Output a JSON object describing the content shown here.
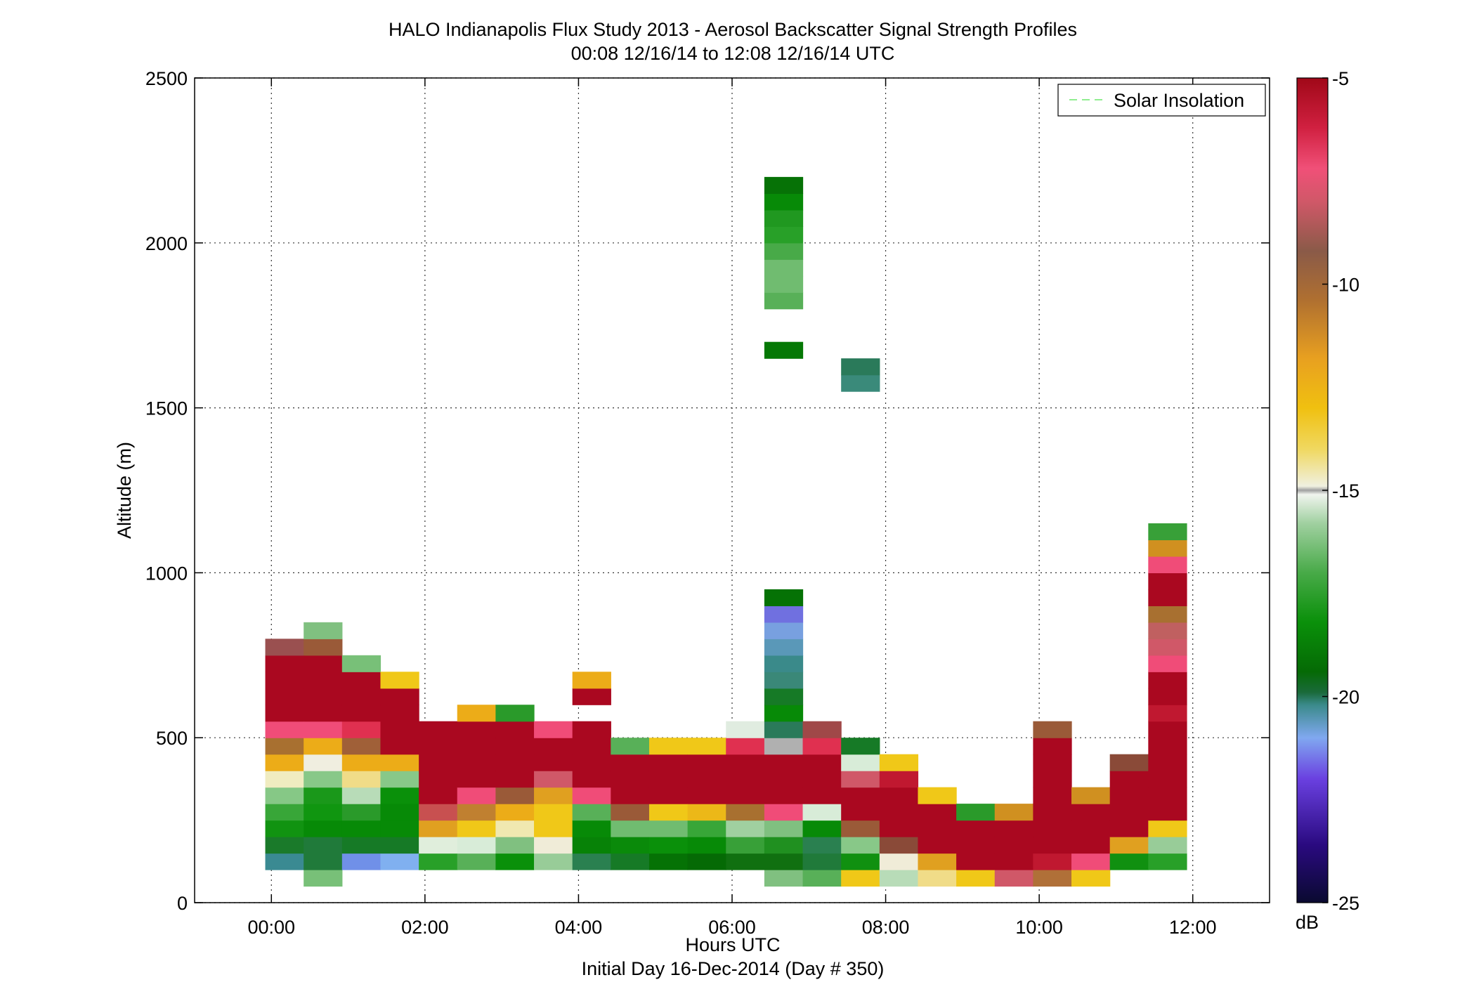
{
  "chart_data": {
    "type": "heatmap",
    "title": "HALO Indianapolis Flux Study 2013 - Aerosol Backscatter Signal Strength Profiles",
    "subtitle": "00:08 12/16/14 to 12:08 12/16/14  UTC",
    "xlabel": "Hours UTC",
    "xlabel2": "Initial Day 16-Dec-2014 (Day # 350)",
    "ylabel": "Altitude (m)",
    "xlim": [
      -1,
      13
    ],
    "ylim": [
      0,
      2500
    ],
    "x_ticks": [
      0,
      2,
      4,
      6,
      8,
      10,
      12
    ],
    "x_tick_labels": [
      "00:00",
      "02:00",
      "04:00",
      "06:00",
      "08:00",
      "10:00",
      "12:00"
    ],
    "y_ticks": [
      0,
      500,
      1000,
      1500,
      2000,
      2500
    ],
    "y_tick_labels": [
      "0",
      "500",
      "1000",
      "1500",
      "2000",
      "2500"
    ],
    "grid": true,
    "legend": {
      "position": "top-right",
      "entries": [
        {
          "label": "Solar Insolation",
          "color": "#90ee90",
          "style": "dashed"
        }
      ]
    },
    "colorbar": {
      "label": "dB",
      "range": [
        -25,
        -5
      ],
      "ticks": [
        -5,
        -10,
        -15,
        -20,
        -25
      ],
      "tick_labels": [
        "-5",
        "-10",
        "-15",
        "-20",
        "-25"
      ]
    },
    "columns": [
      {
        "x": 0.17,
        "cells": [
          [
            100,
            "#3a8a92"
          ],
          [
            150,
            "#1a7a2a"
          ],
          [
            200,
            "#119311"
          ],
          [
            250,
            "#38a638"
          ],
          [
            300,
            "#86c886"
          ],
          [
            350,
            "#f0ecc0"
          ],
          [
            400,
            "#ecac18"
          ],
          [
            450,
            "#a87030"
          ],
          [
            500,
            "#f04c78"
          ],
          [
            550,
            "#aa0820"
          ],
          [
            600,
            "#aa0820"
          ],
          [
            650,
            "#aa0820"
          ],
          [
            700,
            "#aa0820"
          ],
          [
            750,
            "#9a5050"
          ]
        ]
      },
      {
        "x": 0.67,
        "cells": [
          [
            50,
            "#78c078"
          ],
          [
            100,
            "#207a3a"
          ],
          [
            150,
            "#207a3a"
          ],
          [
            200,
            "#078a07"
          ],
          [
            250,
            "#109610"
          ],
          [
            300,
            "#1a981a"
          ],
          [
            350,
            "#88c888"
          ],
          [
            400,
            "#f0eee0"
          ],
          [
            450,
            "#ecac18"
          ],
          [
            500,
            "#f04c78"
          ],
          [
            550,
            "#aa0820"
          ],
          [
            600,
            "#aa0820"
          ],
          [
            650,
            "#aa0820"
          ],
          [
            700,
            "#aa0820"
          ],
          [
            750,
            "#9a5a38"
          ],
          [
            800,
            "#80c080"
          ]
        ]
      },
      {
        "x": 1.17,
        "cells": [
          [
            100,
            "#7090e8"
          ],
          [
            150,
            "#167a26"
          ],
          [
            200,
            "#078a07"
          ],
          [
            250,
            "#2a9a2a"
          ],
          [
            300,
            "#b8dcb8"
          ],
          [
            350,
            "#f0dc88"
          ],
          [
            400,
            "#ecac18"
          ],
          [
            450,
            "#a06038"
          ],
          [
            500,
            "#e03050"
          ],
          [
            550,
            "#aa0820"
          ],
          [
            600,
            "#aa0820"
          ],
          [
            650,
            "#aa0820"
          ],
          [
            700,
            "#78c078"
          ]
        ]
      },
      {
        "x": 1.67,
        "cells": [
          [
            100,
            "#80b0f0"
          ],
          [
            150,
            "#167a26"
          ],
          [
            200,
            "#078a07"
          ],
          [
            250,
            "#078a07"
          ],
          [
            300,
            "#0a900a"
          ],
          [
            350,
            "#88c888"
          ],
          [
            400,
            "#ecac18"
          ],
          [
            450,
            "#aa0820"
          ],
          [
            500,
            "#aa0820"
          ],
          [
            550,
            "#aa0820"
          ],
          [
            600,
            "#aa0820"
          ],
          [
            650,
            "#f0c818"
          ]
        ]
      },
      {
        "x": 2.17,
        "cells": [
          [
            100,
            "#28a028"
          ],
          [
            150,
            "#e0eedc"
          ],
          [
            200,
            "#e0a020"
          ],
          [
            250,
            "#c85050"
          ],
          [
            300,
            "#aa0820"
          ],
          [
            350,
            "#aa0820"
          ],
          [
            400,
            "#aa0820"
          ],
          [
            450,
            "#aa0820"
          ],
          [
            500,
            "#aa0820"
          ]
        ]
      },
      {
        "x": 2.67,
        "cells": [
          [
            100,
            "#58b058"
          ],
          [
            150,
            "#d8ecd8"
          ],
          [
            200,
            "#f0c818"
          ],
          [
            250,
            "#c08030"
          ],
          [
            300,
            "#f04c78"
          ],
          [
            350,
            "#aa0820"
          ],
          [
            400,
            "#aa0820"
          ],
          [
            450,
            "#aa0820"
          ],
          [
            500,
            "#aa0820"
          ],
          [
            550,
            "#ecac18"
          ]
        ]
      },
      {
        "x": 3.17,
        "cells": [
          [
            100,
            "#0a900a"
          ],
          [
            150,
            "#80c080"
          ],
          [
            200,
            "#f0e8b0"
          ],
          [
            250,
            "#ecac18"
          ],
          [
            300,
            "#9a5a38"
          ],
          [
            350,
            "#aa0820"
          ],
          [
            400,
            "#aa0820"
          ],
          [
            450,
            "#aa0820"
          ],
          [
            500,
            "#aa0820"
          ],
          [
            550,
            "#2a9a2a"
          ]
        ]
      },
      {
        "x": 3.67,
        "cells": [
          [
            100,
            "#98cc98"
          ],
          [
            150,
            "#f0ecd8"
          ],
          [
            200,
            "#f0c818"
          ],
          [
            250,
            "#f0c818"
          ],
          [
            300,
            "#e0a020"
          ],
          [
            350,
            "#d05868"
          ],
          [
            400,
            "#aa0820"
          ],
          [
            450,
            "#aa0820"
          ],
          [
            500,
            "#f04c78"
          ]
        ]
      },
      {
        "x": 4.17,
        "cells": [
          [
            100,
            "#2a8050"
          ],
          [
            150,
            "#078207"
          ],
          [
            200,
            "#078a07"
          ],
          [
            250,
            "#58b058"
          ],
          [
            300,
            "#f04c78"
          ],
          [
            350,
            "#aa0820"
          ],
          [
            400,
            "#aa0820"
          ],
          [
            450,
            "#aa0820"
          ],
          [
            500,
            "#aa0820"
          ],
          [
            600,
            "#aa0820"
          ],
          [
            650,
            "#ecac18"
          ]
        ]
      },
      {
        "x": 4.67,
        "cells": [
          [
            100,
            "#167a26"
          ],
          [
            150,
            "#0a8a0a"
          ],
          [
            200,
            "#70bc70"
          ],
          [
            250,
            "#9a5a38"
          ],
          [
            300,
            "#aa0820"
          ],
          [
            350,
            "#aa0820"
          ],
          [
            400,
            "#aa0820"
          ],
          [
            450,
            "#58b058"
          ]
        ]
      },
      {
        "x": 5.17,
        "cells": [
          [
            100,
            "#057205"
          ],
          [
            150,
            "#0a900a"
          ],
          [
            200,
            "#70bc70"
          ],
          [
            250,
            "#f0c818"
          ],
          [
            300,
            "#aa0820"
          ],
          [
            350,
            "#aa0820"
          ],
          [
            400,
            "#aa0820"
          ],
          [
            450,
            "#f0c818"
          ]
        ]
      },
      {
        "x": 5.67,
        "cells": [
          [
            100,
            "#056a05"
          ],
          [
            150,
            "#078a07"
          ],
          [
            200,
            "#38a638"
          ],
          [
            250,
            "#ecb818"
          ],
          [
            300,
            "#aa0820"
          ],
          [
            350,
            "#aa0820"
          ],
          [
            400,
            "#aa0820"
          ],
          [
            450,
            "#f0c818"
          ]
        ]
      },
      {
        "x": 6.17,
        "cells": [
          [
            100,
            "#107010"
          ],
          [
            150,
            "#38a038"
          ],
          [
            200,
            "#a0d0a0"
          ],
          [
            250,
            "#a87030"
          ],
          [
            300,
            "#aa0820"
          ],
          [
            350,
            "#aa0820"
          ],
          [
            400,
            "#aa0820"
          ],
          [
            450,
            "#e03050"
          ],
          [
            500,
            "#e0ece0"
          ]
        ]
      },
      {
        "x": 6.67,
        "cells": [
          [
            50,
            "#80c080"
          ],
          [
            100,
            "#107010"
          ],
          [
            150,
            "#209020"
          ],
          [
            200,
            "#80c080"
          ],
          [
            250,
            "#f04c78"
          ],
          [
            300,
            "#aa0820"
          ],
          [
            350,
            "#aa0820"
          ],
          [
            400,
            "#aa0820"
          ],
          [
            450,
            "#b0b0b0"
          ],
          [
            500,
            "#2a7a5a"
          ],
          [
            550,
            "#078a07"
          ],
          [
            600,
            "#167a26"
          ],
          [
            650,
            "#3a8878"
          ],
          [
            700,
            "#3a8a8a"
          ],
          [
            750,
            "#5a98b8"
          ],
          [
            800,
            "#78a0e0"
          ],
          [
            850,
            "#7070e0"
          ],
          [
            900,
            "#057205"
          ],
          [
            1650,
            "#057805"
          ],
          [
            1800,
            "#58b058"
          ],
          [
            1850,
            "#70bc70"
          ],
          [
            1900,
            "#70bc70"
          ],
          [
            1950,
            "#48aa48"
          ],
          [
            2000,
            "#28a028"
          ],
          [
            2050,
            "#209820"
          ],
          [
            2100,
            "#078a07"
          ],
          [
            2150,
            "#067206"
          ]
        ]
      },
      {
        "x": 7.17,
        "cells": [
          [
            50,
            "#58b058"
          ],
          [
            100,
            "#207a3a"
          ],
          [
            150,
            "#2a8050"
          ],
          [
            200,
            "#078a07"
          ],
          [
            250,
            "#d8ecd8"
          ],
          [
            300,
            "#aa0820"
          ],
          [
            350,
            "#aa0820"
          ],
          [
            400,
            "#aa0820"
          ],
          [
            450,
            "#e03050"
          ],
          [
            500,
            "#a04848"
          ]
        ]
      },
      {
        "x": 7.67,
        "cells": [
          [
            50,
            "#f0c818"
          ],
          [
            100,
            "#109010"
          ],
          [
            150,
            "#88c888"
          ],
          [
            200,
            "#9a5a38"
          ],
          [
            250,
            "#aa0820"
          ],
          [
            300,
            "#aa0820"
          ],
          [
            350,
            "#d05868"
          ],
          [
            400,
            "#d8ecd8"
          ],
          [
            450,
            "#167a26"
          ],
          [
            1550,
            "#3a8a7a"
          ],
          [
            1600,
            "#2a7a5a"
          ]
        ]
      },
      {
        "x": 8.17,
        "cells": [
          [
            50,
            "#b8dcb8"
          ],
          [
            100,
            "#f0ecd8"
          ],
          [
            150,
            "#8a4a38"
          ],
          [
            200,
            "#aa0820"
          ],
          [
            250,
            "#aa0820"
          ],
          [
            300,
            "#aa0820"
          ],
          [
            350,
            "#c01830"
          ],
          [
            400,
            "#f0c818"
          ]
        ]
      },
      {
        "x": 8.67,
        "cells": [
          [
            50,
            "#f0dc88"
          ],
          [
            100,
            "#e0a020"
          ],
          [
            150,
            "#aa0820"
          ],
          [
            200,
            "#aa0820"
          ],
          [
            250,
            "#aa0820"
          ],
          [
            300,
            "#f0c818"
          ]
        ]
      },
      {
        "x": 9.17,
        "cells": [
          [
            50,
            "#f0c818"
          ],
          [
            100,
            "#aa0820"
          ],
          [
            150,
            "#aa0820"
          ],
          [
            200,
            "#aa0820"
          ],
          [
            250,
            "#2a9a2a"
          ]
        ]
      },
      {
        "x": 9.67,
        "cells": [
          [
            50,
            "#d05868"
          ],
          [
            100,
            "#aa0820"
          ],
          [
            150,
            "#aa0820"
          ],
          [
            200,
            "#aa0820"
          ],
          [
            250,
            "#d09020"
          ]
        ]
      },
      {
        "x": 10.17,
        "cells": [
          [
            50,
            "#b07038"
          ],
          [
            100,
            "#c01830"
          ],
          [
            150,
            "#aa0820"
          ],
          [
            200,
            "#aa0820"
          ],
          [
            250,
            "#aa0820"
          ],
          [
            300,
            "#aa0820"
          ],
          [
            350,
            "#aa0820"
          ],
          [
            400,
            "#aa0820"
          ],
          [
            450,
            "#aa0820"
          ],
          [
            500,
            "#9a5a38"
          ]
        ]
      },
      {
        "x": 10.67,
        "cells": [
          [
            50,
            "#f0c818"
          ],
          [
            100,
            "#f04c78"
          ],
          [
            150,
            "#aa0820"
          ],
          [
            200,
            "#aa0820"
          ],
          [
            250,
            "#aa0820"
          ],
          [
            300,
            "#d09020"
          ]
        ]
      },
      {
        "x": 11.17,
        "cells": [
          [
            100,
            "#109010"
          ],
          [
            150,
            "#e0a020"
          ],
          [
            200,
            "#aa0820"
          ],
          [
            250,
            "#aa0820"
          ],
          [
            300,
            "#aa0820"
          ],
          [
            350,
            "#aa0820"
          ],
          [
            400,
            "#8a4a38"
          ]
        ]
      },
      {
        "x": 11.67,
        "cells": [
          [
            100,
            "#28a028"
          ],
          [
            150,
            "#98cc98"
          ],
          [
            200,
            "#f0c818"
          ],
          [
            250,
            "#aa0820"
          ],
          [
            300,
            "#aa0820"
          ],
          [
            350,
            "#aa0820"
          ],
          [
            400,
            "#aa0820"
          ],
          [
            450,
            "#aa0820"
          ],
          [
            500,
            "#aa0820"
          ],
          [
            550,
            "#c01830"
          ],
          [
            600,
            "#aa0820"
          ],
          [
            650,
            "#aa0820"
          ],
          [
            700,
            "#f04c78"
          ],
          [
            750,
            "#d05868"
          ],
          [
            800,
            "#c06060"
          ],
          [
            850,
            "#a87030"
          ],
          [
            900,
            "#aa0820"
          ],
          [
            950,
            "#aa0820"
          ],
          [
            1000,
            "#f04c78"
          ],
          [
            1050,
            "#d09020"
          ],
          [
            1100,
            "#38a038"
          ]
        ]
      }
    ],
    "cell_width_hours": 0.5,
    "cell_height_m": 50
  }
}
